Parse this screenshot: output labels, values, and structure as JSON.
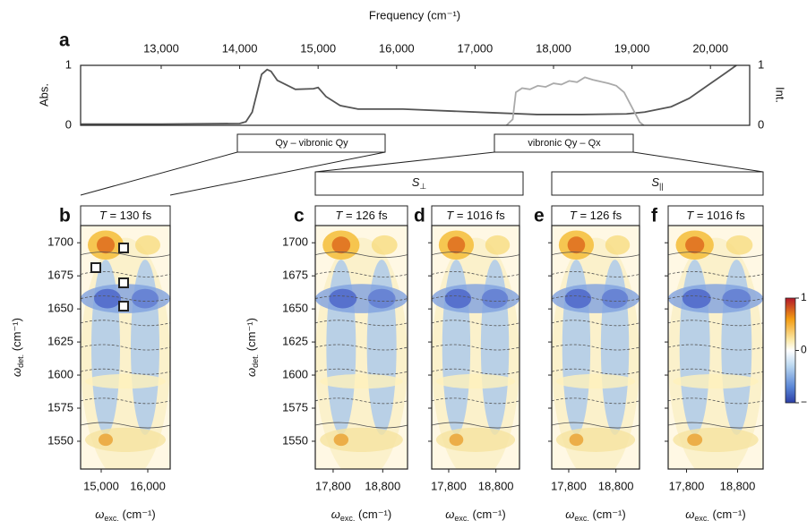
{
  "figure": {
    "panel_a": {
      "label": "a",
      "type": "line",
      "title": "Frequency (cm⁻¹)",
      "ylabel": "Abs.",
      "y2label": "Int.",
      "xlim": [
        11973,
        20500
      ],
      "xticks": [
        {
          "value": 13000,
          "label": "13,000"
        },
        {
          "value": 14000,
          "label": "14,000"
        },
        {
          "value": 15000,
          "label": "15,000"
        },
        {
          "value": 16000,
          "label": "16,000"
        },
        {
          "value": 17000,
          "label": "17,000"
        },
        {
          "value": 18000,
          "label": "18,000"
        },
        {
          "value": 19000,
          "label": "19,000"
        },
        {
          "value": 20000,
          "label": "20,000"
        }
      ],
      "ylim": [
        0,
        1
      ],
      "yticks": [
        0,
        1
      ],
      "y2lim": [
        0,
        1
      ],
      "y2ticks": [
        0,
        1
      ],
      "series": [
        {
          "color": "#555555",
          "x": [
            11980,
            13000,
            14000,
            14080,
            14160,
            14280,
            14350,
            14400,
            14480,
            14710,
            14940,
            15000,
            15100,
            15280,
            15510,
            16080,
            16650,
            17220,
            17790,
            18360,
            18930,
            19160,
            19500,
            19730,
            19960,
            20190,
            20330
          ],
          "values": [
            0.02,
            0.02,
            0.03,
            0.06,
            0.22,
            0.85,
            0.93,
            0.9,
            0.75,
            0.6,
            0.61,
            0.63,
            0.48,
            0.33,
            0.27,
            0.27,
            0.24,
            0.21,
            0.18,
            0.18,
            0.19,
            0.22,
            0.31,
            0.45,
            0.66,
            0.87,
            1.0
          ]
        },
        {
          "color": "#aaaaaa",
          "axis": "y2",
          "x": [
            17400,
            17480,
            17520,
            17600,
            17700,
            17800,
            17900,
            18000,
            18100,
            18200,
            18300,
            18400,
            18500,
            18600,
            18700,
            18800,
            18900,
            19000,
            19100,
            19150
          ],
          "values": [
            0,
            0.1,
            0.55,
            0.62,
            0.6,
            0.66,
            0.64,
            0.7,
            0.68,
            0.74,
            0.72,
            0.8,
            0.76,
            0.73,
            0.7,
            0.66,
            0.55,
            0.3,
            0.05,
            0
          ]
        }
      ]
    },
    "brackets": [
      "Qy – vibronic Qy",
      "vibronic Qy – Qx"
    ],
    "groups": [
      {
        "var": "S",
        "sub": "⊥"
      },
      {
        "var": "S",
        "sub": "||"
      }
    ],
    "ylabel": {
      "symbol": "ω",
      "sub": "det.",
      "unit": " (cm⁻¹)"
    },
    "xlabel": {
      "symbol": "ω",
      "sub": "exc.",
      "unit": " (cm⁻¹)"
    },
    "ylim": [
      1529,
      1713
    ],
    "yticks": [
      1700,
      1675,
      1650,
      1625,
      1600,
      1575,
      1550
    ],
    "panels": [
      {
        "label": "b",
        "title": {
          "var": "T",
          "text": " = 130 fs"
        },
        "xlim": [
          14558,
          16481
        ],
        "xticks": [
          {
            "value": 15000,
            "label": "15,000"
          },
          {
            "value": 16000,
            "label": "16,000"
          }
        ],
        "show_ytick_labels": true
      },
      {
        "label": "c",
        "title": {
          "var": "T",
          "text": " = 126 fs"
        },
        "xlim": [
          17440,
          19300
        ],
        "xticks": [
          {
            "value": 17800,
            "label": "17,800"
          },
          {
            "value": 18800,
            "label": "18,800"
          }
        ],
        "show_ytick_labels": true
      },
      {
        "label": "d",
        "title": {
          "var": "T",
          "text": " = 1016 fs"
        },
        "xlim": [
          17440,
          19300
        ],
        "xticks": [
          {
            "value": 17800,
            "label": "17,800"
          },
          {
            "value": 18800,
            "label": "18,800"
          }
        ],
        "show_ytick_labels": false
      },
      {
        "label": "e",
        "title": {
          "var": "T",
          "text": " = 126 fs"
        },
        "xlim": [
          17440,
          19300
        ],
        "xticks": [
          {
            "value": 17800,
            "label": "17,800"
          },
          {
            "value": 18800,
            "label": "18,800"
          }
        ],
        "show_ytick_labels": false
      },
      {
        "label": "f",
        "title": {
          "var": "T",
          "text": " = 1016 fs"
        },
        "xlim": [
          17440,
          19300
        ],
        "xticks": [
          {
            "value": 17800,
            "label": "17,800"
          },
          {
            "value": 18800,
            "label": "18,800"
          }
        ],
        "show_ytick_labels": false
      }
    ],
    "colorbar": {
      "lim": [
        -1,
        1
      ],
      "ticks": [
        1,
        0,
        {
          "value": -1,
          "label": "−1"
        }
      ]
    }
  }
}
